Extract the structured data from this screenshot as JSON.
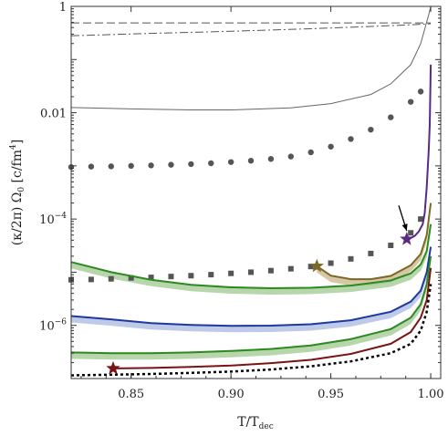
{
  "chart_data": {
    "type": "line",
    "title": "",
    "xlabel": "T/T",
    "xlabel_sub": "dec",
    "ylabel": "(κ/2π) Ω",
    "ylabel_sub": "0",
    "ylabel_unit": "[c/fm",
    "ylabel_unit_sup": "4",
    "ylabel_unit_close": "]",
    "xlim": [
      0.82,
      1.005
    ],
    "ylim": [
      1e-07,
      1
    ],
    "yscale": "log",
    "grid": false,
    "legend": "none",
    "x_ticks": [
      0.85,
      0.9,
      0.95,
      1.0
    ],
    "x_tick_labels": [
      "0.85",
      "0.90",
      "0.95",
      "1.00"
    ],
    "y_ticks_labeled": [
      {
        "value": 1,
        "base": "1",
        "exp": ""
      },
      {
        "value": 0.01,
        "base": "0.01",
        "exp": ""
      },
      {
        "value": 0.0001,
        "base": "10",
        "exp": "−4"
      },
      {
        "value": 1e-06,
        "base": "10",
        "exp": "−6"
      }
    ],
    "series": [
      {
        "style": "dashed",
        "color": "#555555",
        "points": [
          [
            0.82,
            0.49
          ],
          [
            0.9,
            0.49
          ],
          [
            0.95,
            0.49
          ],
          [
            0.99,
            0.49
          ],
          [
            1.0,
            0.49
          ]
        ]
      },
      {
        "style": "dashdot",
        "color": "#555555",
        "points": [
          [
            0.82,
            0.28
          ],
          [
            0.86,
            0.31
          ],
          [
            0.9,
            0.34
          ],
          [
            0.94,
            0.38
          ],
          [
            0.97,
            0.42
          ],
          [
            0.99,
            0.45
          ],
          [
            1.0,
            0.47
          ]
        ]
      },
      {
        "style": "solid-thin",
        "color": "#666666",
        "points": [
          [
            0.82,
            0.0125
          ],
          [
            0.85,
            0.0118
          ],
          [
            0.88,
            0.0113
          ],
          [
            0.9,
            0.0113
          ],
          [
            0.93,
            0.0123
          ],
          [
            0.95,
            0.0148
          ],
          [
            0.97,
            0.022
          ],
          [
            0.98,
            0.035
          ],
          [
            0.99,
            0.08
          ],
          [
            0.995,
            0.2
          ],
          [
            0.999,
            0.7
          ],
          [
            1.0,
            1.0
          ]
        ]
      },
      {
        "style": "dots",
        "color": "#555555",
        "points": [
          [
            0.82,
            0.00095
          ],
          [
            0.83,
            0.00097
          ],
          [
            0.84,
            0.00098
          ],
          [
            0.85,
            0.001
          ],
          [
            0.86,
            0.00102
          ],
          [
            0.87,
            0.00105
          ],
          [
            0.88,
            0.00108
          ],
          [
            0.89,
            0.00112
          ],
          [
            0.9,
            0.00118
          ],
          [
            0.91,
            0.00125
          ],
          [
            0.92,
            0.00135
          ],
          [
            0.93,
            0.0015
          ],
          [
            0.94,
            0.0018
          ],
          [
            0.95,
            0.0023
          ],
          [
            0.96,
            0.0032
          ],
          [
            0.97,
            0.0048
          ],
          [
            0.98,
            0.0082
          ],
          [
            0.99,
            0.016
          ],
          [
            0.995,
            0.025
          ]
        ]
      },
      {
        "style": "squares",
        "color": "#555555",
        "points": [
          [
            0.82,
            7.2e-06
          ],
          [
            0.83,
            7.3e-06
          ],
          [
            0.84,
            7.5e-06
          ],
          [
            0.85,
            7.8e-06
          ],
          [
            0.86,
            8e-06
          ],
          [
            0.87,
            8.3e-06
          ],
          [
            0.88,
            8.6e-06
          ],
          [
            0.89,
            9e-06
          ],
          [
            0.9,
            9.5e-06
          ],
          [
            0.91,
            1e-05
          ],
          [
            0.92,
            1.07e-05
          ],
          [
            0.93,
            1.16e-05
          ],
          [
            0.94,
            1.28e-05
          ],
          [
            0.95,
            1.48e-05
          ],
          [
            0.96,
            1.78e-05
          ],
          [
            0.97,
            2.25e-05
          ],
          [
            0.98,
            3.2e-05
          ],
          [
            0.99,
            5.5e-05
          ],
          [
            0.995,
            0.0001
          ]
        ]
      },
      {
        "style": "solid",
        "color": "#5a2a82",
        "points": [
          [
            0.988,
            4.2e-05
          ],
          [
            0.99,
            4.4e-05
          ],
          [
            0.992,
            4.8e-05
          ],
          [
            0.994,
            5.8e-05
          ],
          [
            0.996,
            8e-05
          ],
          [
            0.997,
            0.00013
          ],
          [
            0.998,
            0.0004
          ],
          [
            0.999,
            0.002
          ],
          [
            0.9995,
            0.006
          ],
          [
            1.0,
            0.08
          ]
        ]
      },
      {
        "style": "solid",
        "color": "#7a6a24",
        "band": "#c8b48a",
        "points": [
          [
            0.943,
            1.3e-05
          ],
          [
            0.95,
            8.6e-06
          ],
          [
            0.96,
            7.4e-06
          ],
          [
            0.97,
            7.4e-06
          ],
          [
            0.98,
            8.5e-06
          ],
          [
            0.99,
            1.35e-05
          ],
          [
            0.995,
            2.2e-05
          ],
          [
            0.998,
            5e-05
          ],
          [
            1.0,
            0.0002
          ]
        ]
      },
      {
        "style": "solid",
        "color": "#2c8a1f",
        "band": "#9fc890",
        "points": [
          [
            0.82,
            1.55e-05
          ],
          [
            0.83,
            1.25e-05
          ],
          [
            0.84,
            1e-05
          ],
          [
            0.86,
            7.2e-06
          ],
          [
            0.88,
            5.8e-06
          ],
          [
            0.9,
            5.2e-06
          ],
          [
            0.92,
            5e-06
          ],
          [
            0.94,
            5.1e-06
          ],
          [
            0.96,
            5.6e-06
          ],
          [
            0.98,
            7e-06
          ],
          [
            0.99,
            9.5e-06
          ],
          [
            0.995,
            1.4e-05
          ],
          [
            0.998,
            2.5e-05
          ],
          [
            1.0,
            8e-05
          ]
        ]
      },
      {
        "style": "solid",
        "color": "#1e3aa0",
        "band": "#a8b8e0",
        "points": [
          [
            0.82,
            1.5e-06
          ],
          [
            0.84,
            1.3e-06
          ],
          [
            0.86,
            1.1e-06
          ],
          [
            0.88,
            1.02e-06
          ],
          [
            0.9,
            9.8e-07
          ],
          [
            0.92,
            9.9e-07
          ],
          [
            0.94,
            1.05e-06
          ],
          [
            0.96,
            1.25e-06
          ],
          [
            0.98,
            1.8e-06
          ],
          [
            0.99,
            2.8e-06
          ],
          [
            0.995,
            4.5e-06
          ],
          [
            0.998,
            1e-05
          ],
          [
            1.0,
            3e-05
          ]
        ]
      },
      {
        "style": "solid",
        "color": "#2c8a1f",
        "band": "#9fc890",
        "points": [
          [
            0.82,
            3.1e-07
          ],
          [
            0.84,
            3e-07
          ],
          [
            0.86,
            3e-07
          ],
          [
            0.88,
            3.1e-07
          ],
          [
            0.9,
            3.3e-07
          ],
          [
            0.92,
            3.6e-07
          ],
          [
            0.94,
            4.2e-07
          ],
          [
            0.96,
            5.5e-07
          ],
          [
            0.98,
            8.5e-07
          ],
          [
            0.99,
            1.4e-06
          ],
          [
            0.995,
            2.5e-06
          ],
          [
            0.998,
            6e-06
          ],
          [
            1.0,
            2e-05
          ]
        ]
      },
      {
        "style": "solid",
        "color": "#7a1414",
        "points": [
          [
            0.841,
            1.55e-07
          ],
          [
            0.86,
            1.58e-07
          ],
          [
            0.88,
            1.65e-07
          ],
          [
            0.9,
            1.75e-07
          ],
          [
            0.92,
            1.95e-07
          ],
          [
            0.94,
            2.25e-07
          ],
          [
            0.96,
            2.9e-07
          ],
          [
            0.98,
            4.5e-07
          ],
          [
            0.99,
            7.5e-07
          ],
          [
            0.995,
            1.4e-06
          ],
          [
            0.998,
            3e-06
          ],
          [
            1.0,
            1.2e-05
          ]
        ]
      },
      {
        "style": "dotted-black",
        "color": "#000000",
        "points": [
          [
            0.82,
            1.15e-07
          ],
          [
            0.84,
            1.18e-07
          ],
          [
            0.86,
            1.22e-07
          ],
          [
            0.88,
            1.28e-07
          ],
          [
            0.9,
            1.35e-07
          ],
          [
            0.92,
            1.48e-07
          ],
          [
            0.94,
            1.7e-07
          ],
          [
            0.96,
            2.1e-07
          ],
          [
            0.98,
            3e-07
          ],
          [
            0.99,
            4.5e-07
          ],
          [
            0.995,
            8e-07
          ],
          [
            0.998,
            1.8e-06
          ],
          [
            1.0,
            6e-06
          ]
        ]
      }
    ],
    "markers": [
      {
        "shape": "star",
        "color": "#5a2a82",
        "x": 0.988,
        "y": 4.2e-05
      },
      {
        "shape": "star",
        "color": "#7a6a24",
        "x": 0.943,
        "y": 1.3e-05
      },
      {
        "shape": "star",
        "color": "#7a1414",
        "x": 0.841,
        "y": 1.55e-07
      }
    ],
    "arrow": {
      "from": [
        0.984,
        0.00018
      ],
      "to": [
        0.988,
        6e-05
      ]
    }
  }
}
